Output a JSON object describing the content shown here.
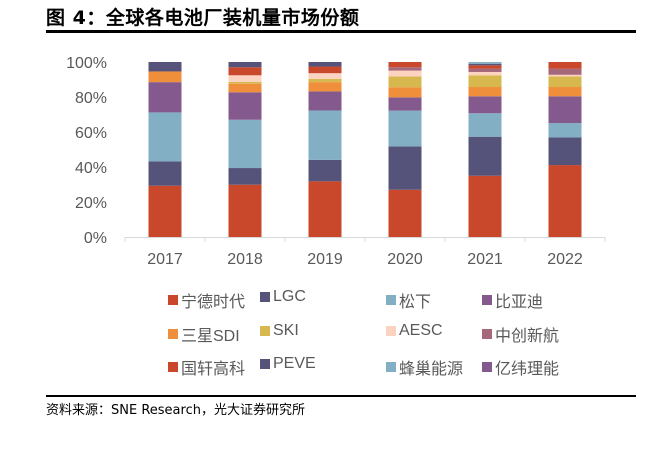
{
  "header": {
    "title": "图 4：全球各电池厂装机量市场份额"
  },
  "footer": {
    "source": "资料来源：SNE Research，光大证券研究所"
  },
  "chart_data": {
    "type": "bar",
    "stacked": true,
    "title": "全球各电池厂装机量市场份额",
    "xlabel": "",
    "ylabel": "",
    "ylim": [
      0,
      100
    ],
    "yticks": [
      "0%",
      "20%",
      "40%",
      "60%",
      "80%",
      "100%"
    ],
    "ytick_values": [
      0,
      20,
      40,
      60,
      80,
      100
    ],
    "grid": false,
    "legend_position": "bottom",
    "categories": [
      "2017",
      "2018",
      "2019",
      "2020",
      "2021",
      "2022"
    ],
    "series": [
      {
        "name": "宁德时代",
        "color": "#c9472a",
        "values": [
          29.3,
          29.9,
          31.8,
          27.0,
          35.0,
          41.1
        ]
      },
      {
        "name": "LGC",
        "color": "#55537a",
        "values": [
          13.9,
          9.5,
          12.3,
          24.8,
          22.3,
          15.8
        ]
      },
      {
        "name": "松下",
        "color": "#82afc3",
        "values": [
          28.0,
          27.6,
          28.2,
          20.4,
          13.4,
          8.2
        ]
      },
      {
        "name": "比亚迪",
        "color": "#845a8e",
        "values": [
          17.3,
          15.7,
          10.9,
          7.6,
          9.7,
          15.3
        ]
      },
      {
        "name": "三星SDI",
        "color": "#ef8f3c",
        "values": [
          6.1,
          4.9,
          5.3,
          5.8,
          5.3,
          5.3
        ]
      },
      {
        "name": "SKI",
        "color": "#d7b84f",
        "values": [
          0,
          1.0,
          1.9,
          6.1,
          6.7,
          6.1
        ]
      },
      {
        "name": "AESC",
        "color": "#fcd3c1",
        "values": [
          0,
          3.8,
          3.2,
          3.4,
          1.9,
          0.9
        ]
      },
      {
        "name": "中创新航",
        "color": "#a5677a",
        "values": [
          0,
          0,
          0,
          1.9,
          1.9,
          3.4
        ]
      },
      {
        "name": "国轩高科",
        "color": "#c9472a",
        "values": [
          0,
          4.6,
          3.8,
          3.0,
          1.9,
          3.9
        ]
      },
      {
        "name": "PEVE",
        "color": "#55537a",
        "values": [
          5.4,
          3.0,
          2.6,
          0,
          0.9,
          0
        ]
      },
      {
        "name": "蜂巢能源",
        "color": "#82afc3",
        "values": [
          0,
          0,
          0,
          0,
          1.0,
          0
        ]
      },
      {
        "name": "亿纬理能",
        "color": "#845a8e",
        "values": [
          0,
          0,
          0,
          0,
          0,
          0
        ]
      }
    ]
  }
}
